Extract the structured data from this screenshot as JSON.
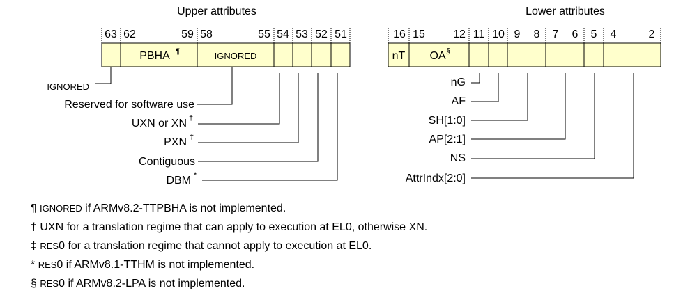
{
  "upper": {
    "title": "Upper attributes",
    "bits": [
      "63",
      "62",
      "59",
      "58",
      "55",
      "54",
      "53",
      "52",
      "51"
    ],
    "fields": {
      "pbha": "PBHA",
      "pbha_mark": "¶",
      "ignored": "IGNORED"
    },
    "labels": {
      "ignored_63": "IGNORED",
      "reserved": "Reserved for software use",
      "uxn": "UXN or XN",
      "uxn_mark": "†",
      "pxn": "PXN",
      "pxn_mark": "‡",
      "contiguous": "Contiguous",
      "dbm": "DBM",
      "dbm_mark": "*"
    }
  },
  "lower": {
    "title": "Lower attributes",
    "bits": [
      "16",
      "15",
      "12",
      "11",
      "10",
      "9",
      "8",
      "7",
      "6",
      "5",
      "4",
      "2"
    ],
    "fields": {
      "nt": "nT",
      "oa": "OA",
      "oa_mark": "§"
    },
    "labels": {
      "ng": "nG",
      "af": "AF",
      "sh": "SH[1:0]",
      "ap": "AP[2:1]",
      "ns": "NS",
      "attrindx": "AttrIndx[2:0]"
    }
  },
  "notes": [
    {
      "sym": "¶",
      "sc": "IGNORED",
      "text": " if ARMv8.2-TTPBHA is not implemented."
    },
    {
      "sym": "†",
      "sc": "",
      "text": " UXN for a translation regime that can apply to execution at EL0, otherwise XN."
    },
    {
      "sym": "‡",
      "sc": "RES",
      "text": "0 for a translation regime that cannot apply to execution at EL0."
    },
    {
      "sym": "*",
      "sc": "RES",
      "text": "0 if ARMv8.1-TTHM is not implemented."
    },
    {
      "sym": "§",
      "sc": "RES",
      "text": "0 if ARMv8.2-LPA is not implemented."
    }
  ]
}
